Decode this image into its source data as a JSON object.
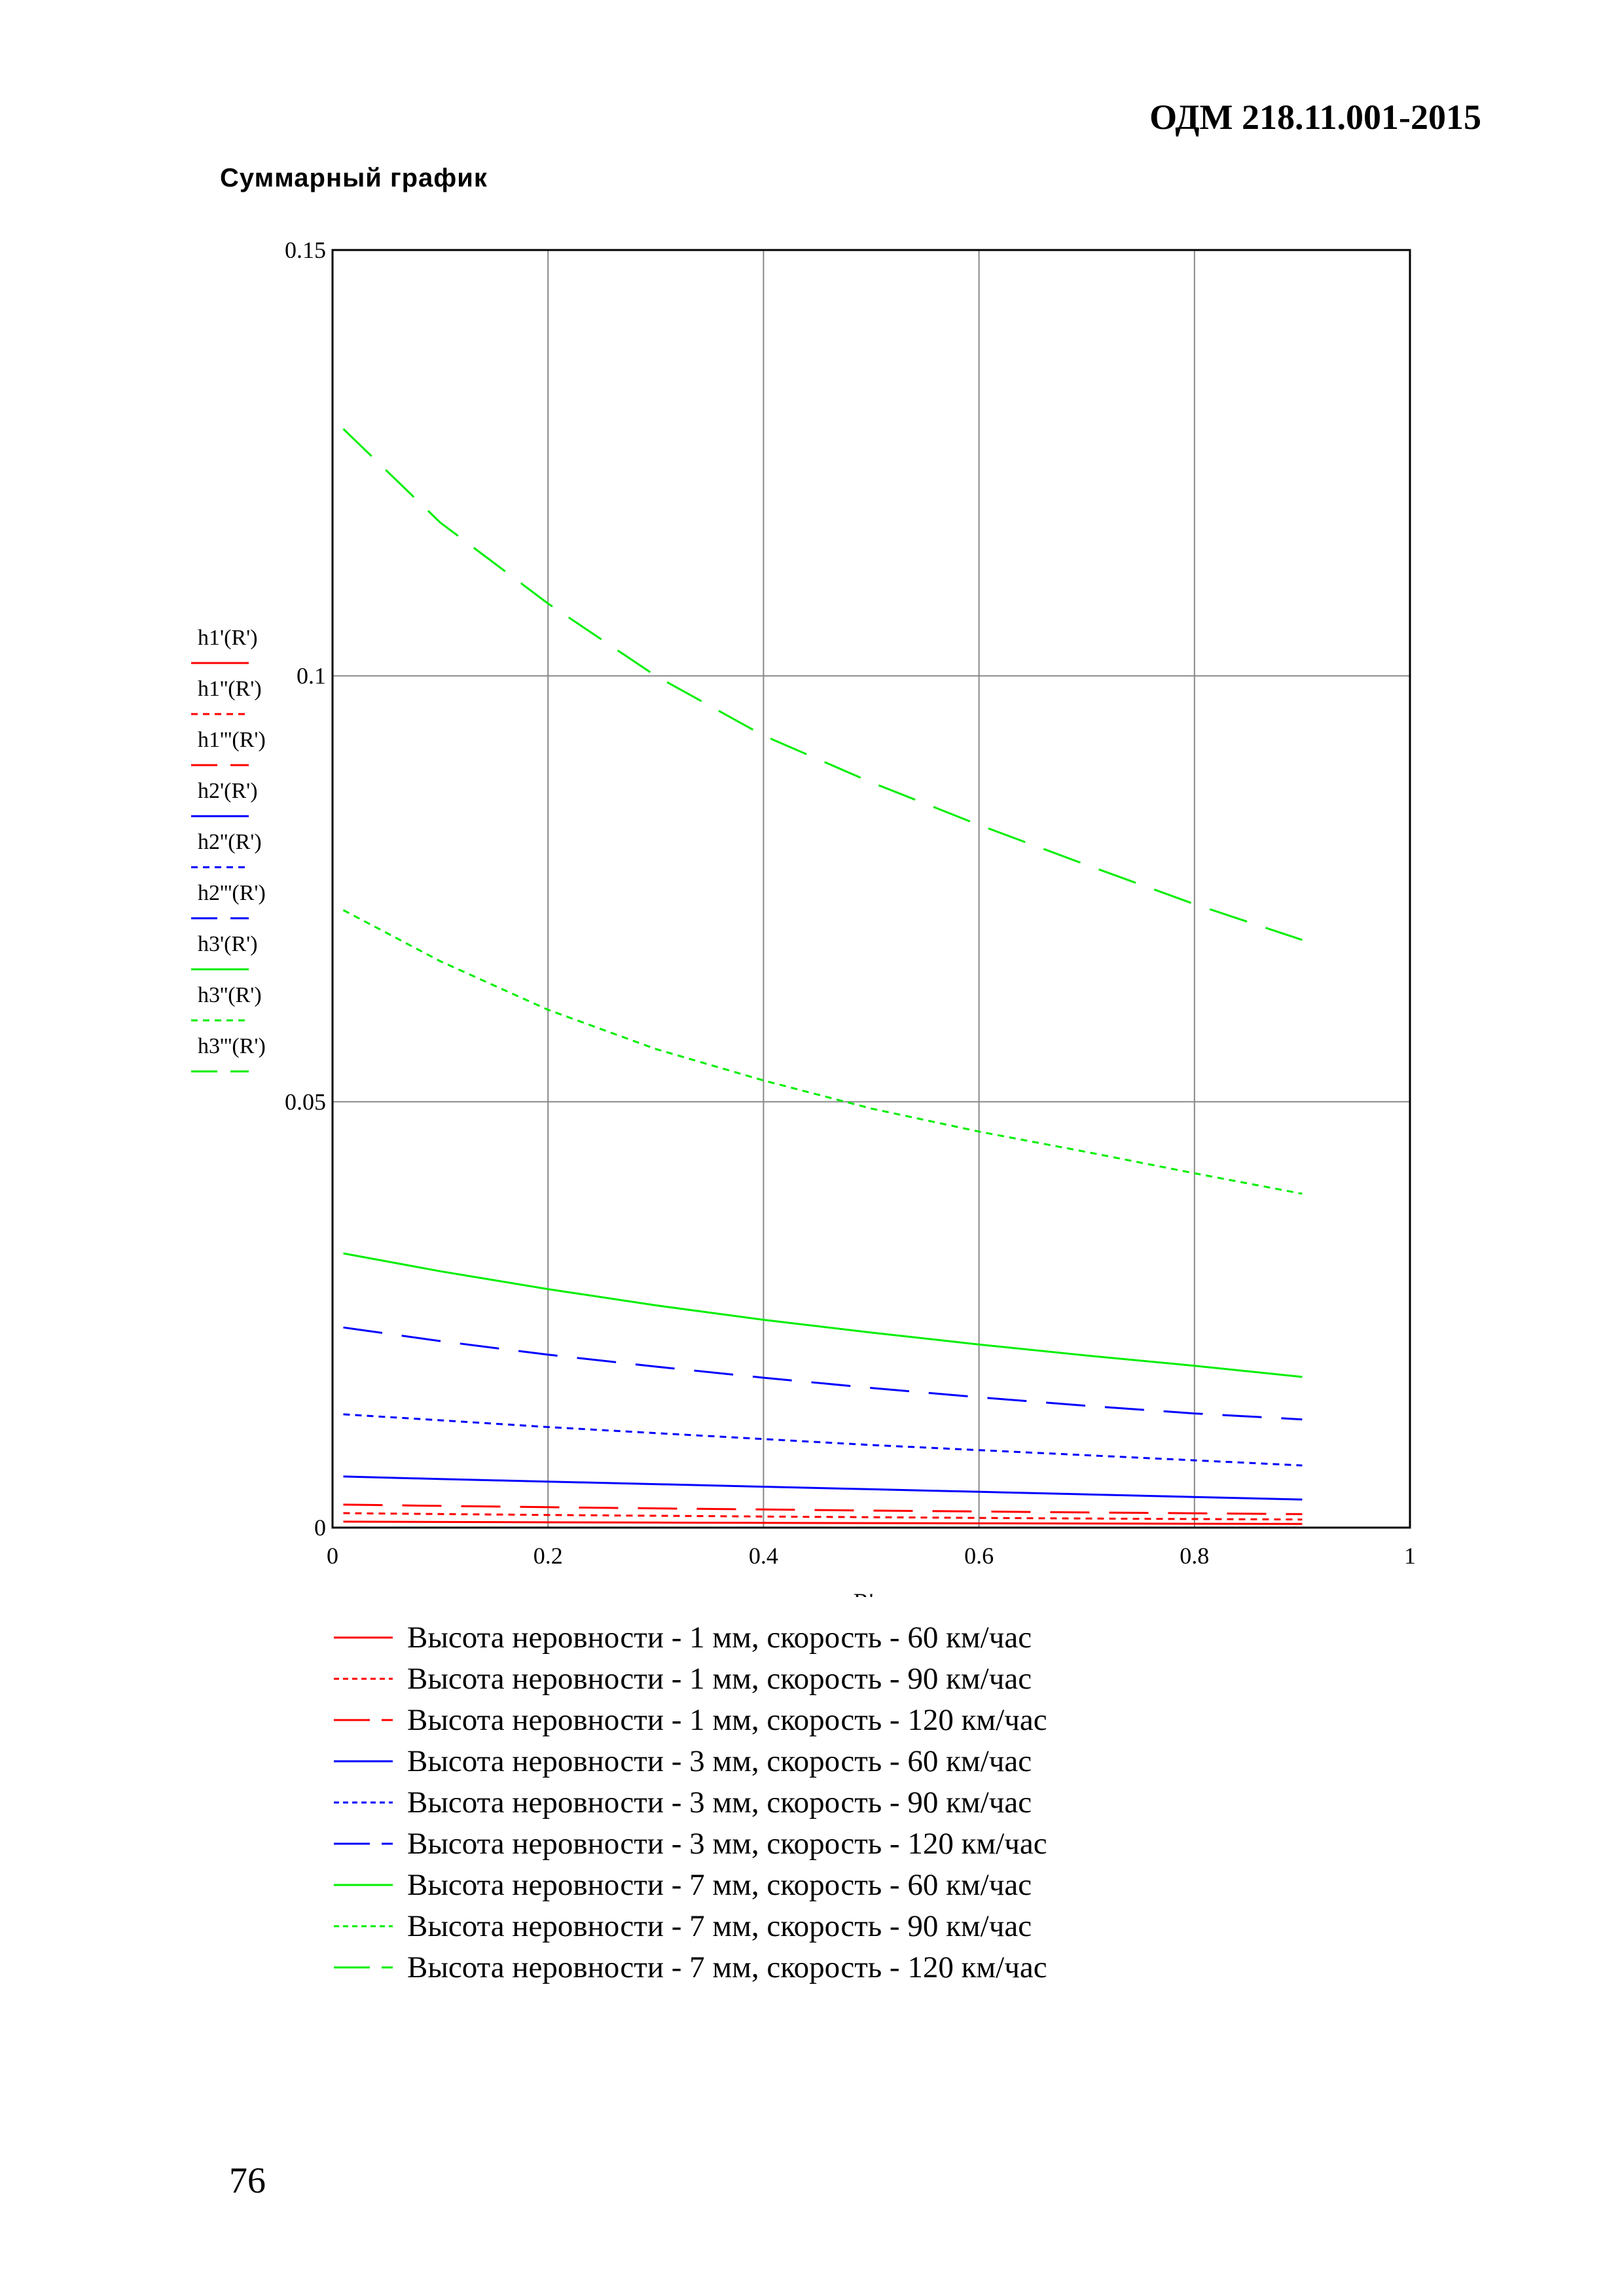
{
  "header": {
    "doc_code": "ОДМ 218.11.001-2015"
  },
  "section": {
    "title": "Суммарный график"
  },
  "page": {
    "number": "76"
  },
  "chart_data": {
    "type": "line",
    "xlabel": "R'",
    "ylabel": "",
    "xlim": [
      0,
      1
    ],
    "ylim": [
      0,
      0.15
    ],
    "xticks": [
      "0",
      "0.2",
      "0.4",
      "0.6",
      "0.8",
      "1"
    ],
    "yticks": [
      "0",
      "0.05",
      "0.1",
      "0.15"
    ],
    "grid": true,
    "y_series_labels": [
      "h1'(R')",
      "h1''(R')",
      "h1'''(R')",
      "h2'(R')",
      "h2''(R')",
      "h2'''(R')",
      "h3'(R')",
      "h3''(R')",
      "h3'''(R')"
    ],
    "x": [
      0.01,
      0.1,
      0.2,
      0.3,
      0.4,
      0.5,
      0.6,
      0.7,
      0.8,
      0.9
    ],
    "series": [
      {
        "name": "Высота неровности - 1 мм, скорость - 60 км/час",
        "color": "#ff0000",
        "dash": "solid",
        "values": [
          0.0007,
          0.00066,
          0.00062,
          0.00059,
          0.00056,
          0.00053,
          0.0005,
          0.00048,
          0.00045,
          0.00043
        ]
      },
      {
        "name": "Высота неровности - 1 мм, скорость - 90 км/час",
        "color": "#ff0000",
        "dash": "dot",
        "values": [
          0.0017,
          0.00159,
          0.00148,
          0.00139,
          0.0013,
          0.00122,
          0.00114,
          0.00107,
          0.00101,
          0.00095
        ]
      },
      {
        "name": "Высота неровности - 1 мм, скорость - 120 км/час",
        "color": "#ff0000",
        "dash": "dash",
        "values": [
          0.0027,
          0.00255,
          0.0024,
          0.00226,
          0.00213,
          0.002,
          0.00189,
          0.00178,
          0.00168,
          0.00158
        ]
      },
      {
        "name": "Высота неровности - 3 мм, скорость - 60 км/час",
        "color": "#0000ff",
        "dash": "solid",
        "values": [
          0.006,
          0.0057,
          0.0054,
          0.0051,
          0.0048,
          0.0045,
          0.0042,
          0.0039,
          0.0036,
          0.0033
        ]
      },
      {
        "name": "Высота неровности - 3 мм, скорость - 90 км/час",
        "color": "#0000ff",
        "dash": "dot",
        "values": [
          0.0133,
          0.0126,
          0.0118,
          0.0111,
          0.0104,
          0.0097,
          0.0091,
          0.0085,
          0.0079,
          0.0073
        ]
      },
      {
        "name": "Высота неровности - 3 мм, скорость - 120 км/час",
        "color": "#0000ff",
        "dash": "dash",
        "values": [
          0.0235,
          0.0219,
          0.0203,
          0.0189,
          0.0176,
          0.0164,
          0.0153,
          0.0143,
          0.0134,
          0.0127
        ]
      },
      {
        "name": "Высота неровности - 7 мм, скорость - 60 км/час",
        "color": "#00ee00",
        "dash": "solid",
        "values": [
          0.0322,
          0.0301,
          0.028,
          0.0261,
          0.0244,
          0.0229,
          0.0215,
          0.0202,
          0.019,
          0.0177
        ]
      },
      {
        "name": "Высота неровности - 7 мм, скорость - 90 км/час",
        "color": "#00ee00",
        "dash": "dot",
        "values": [
          0.0725,
          0.0665,
          0.0608,
          0.0562,
          0.0525,
          0.0492,
          0.0465,
          0.0441,
          0.0416,
          0.0392
        ]
      },
      {
        "name": "Высота неровности - 7 мм, скорость - 120 км/час",
        "color": "#00ee00",
        "dash": "dash",
        "values": [
          0.129,
          0.118,
          0.1085,
          0.1,
          0.093,
          0.0875,
          0.0825,
          0.0778,
          0.0732,
          0.069
        ]
      }
    ]
  }
}
